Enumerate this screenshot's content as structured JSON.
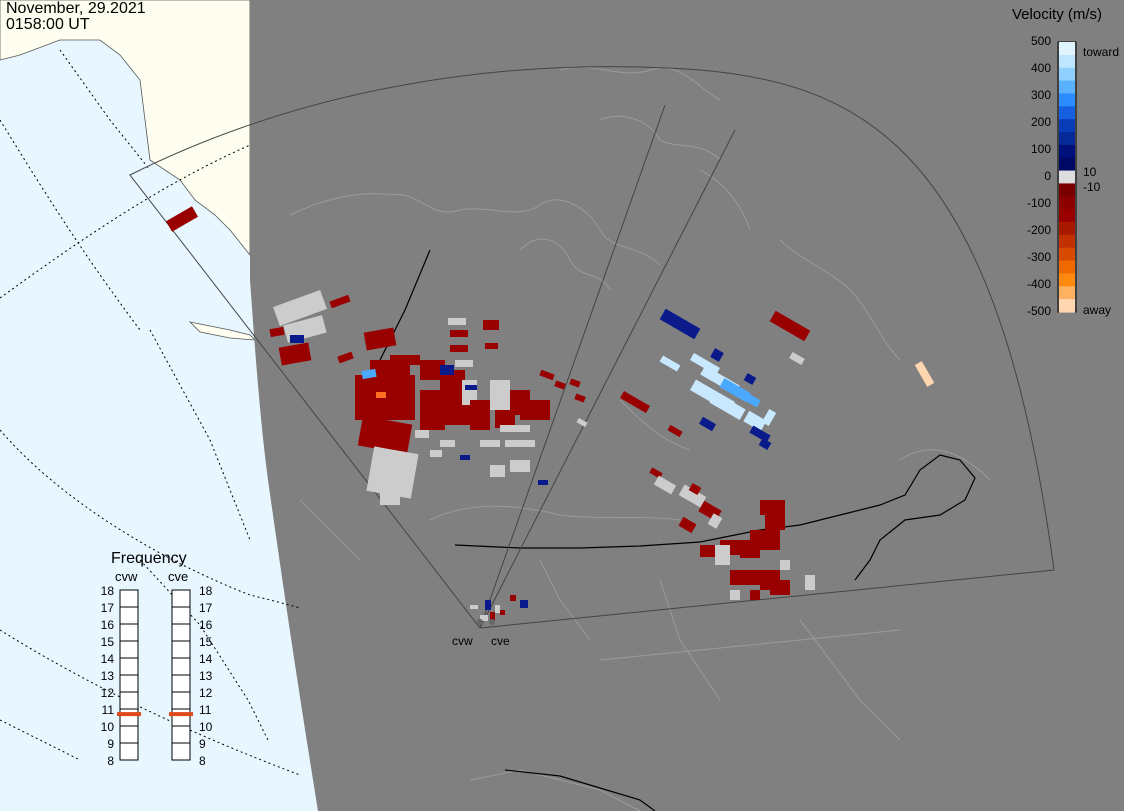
{
  "header": {
    "date": "November, 29.2021",
    "time": "0158:00 UT"
  },
  "legend": {
    "title": "Velocity (m/s)",
    "ticks": [
      "500",
      "400",
      "300",
      "200",
      "100",
      "0",
      "-100",
      "-200",
      "-300",
      "-400",
      "-500"
    ],
    "label_toward": "toward",
    "label_away": "away",
    "label_pos_threshold": "10",
    "label_neg_threshold": "-10"
  },
  "frequency": {
    "title": "Frequency",
    "radars": [
      {
        "name": "cvw",
        "value": 10.7
      },
      {
        "name": "cve",
        "value": 10.7
      }
    ],
    "ticks": [
      "18",
      "17",
      "16",
      "15",
      "14",
      "13",
      "12",
      "11",
      "10",
      "9",
      "8"
    ]
  },
  "sites": [
    {
      "name": "cvw"
    },
    {
      "name": "cve"
    }
  ],
  "colors": {
    "ocean": "#e8f7ff",
    "land_far": "#fdfdf0",
    "land": "#808080",
    "ground_scatter": "#cccccc",
    "toward": "#0000aa",
    "away": "#990000"
  }
}
